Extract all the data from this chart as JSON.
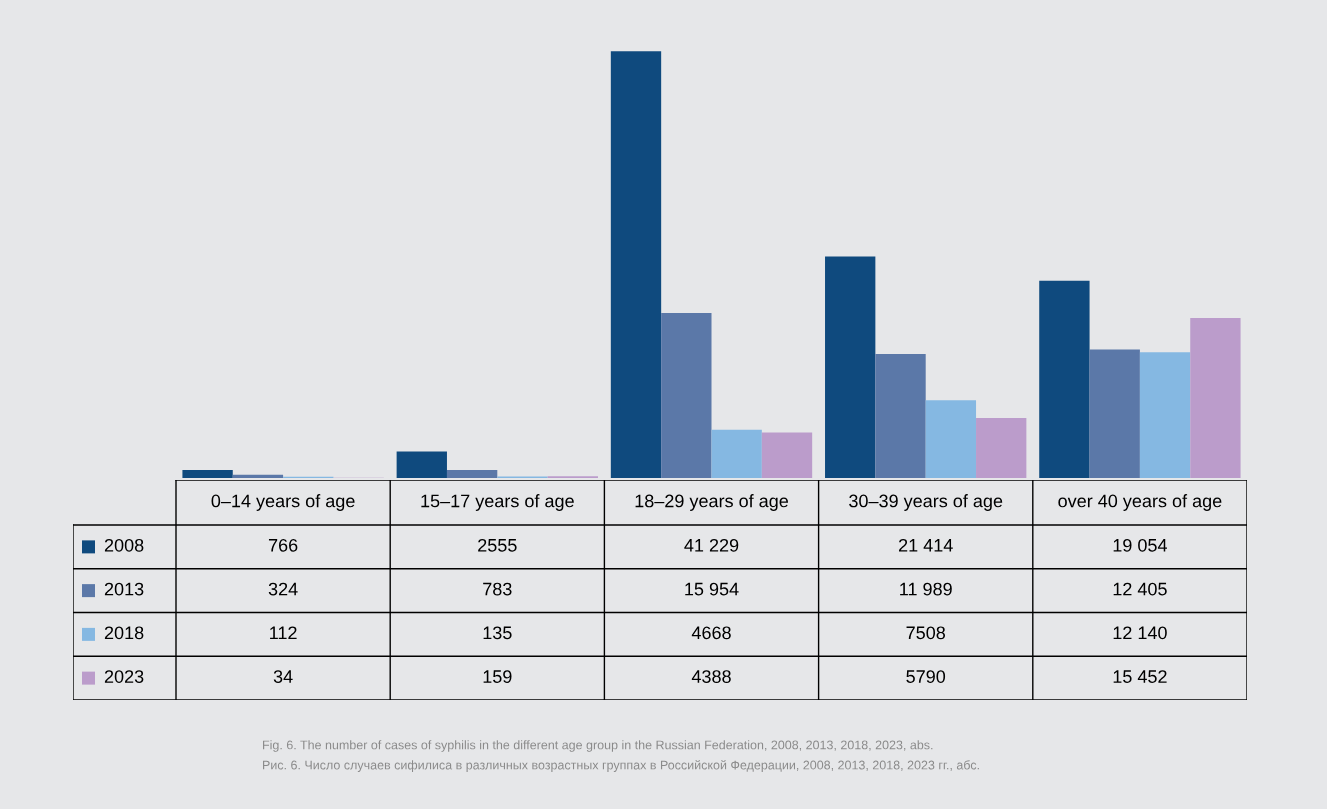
{
  "chart_data": {
    "type": "bar",
    "categories": [
      "0–14 years of age",
      "15–17 years of age",
      "18–29 years of age",
      "30–39 years of age",
      "over 40 years of age"
    ],
    "series": [
      {
        "name": "2008",
        "color": "#0f4a7e",
        "values": [
          766,
          2555,
          41229,
          21414,
          19054
        ],
        "value_labels": [
          "766",
          "2555",
          "41 229",
          "21 414",
          "19 054"
        ]
      },
      {
        "name": "2013",
        "color": "#5b78a8",
        "values": [
          324,
          783,
          15954,
          11989,
          12405
        ],
        "value_labels": [
          "324",
          "783",
          "15 954",
          "11 989",
          "12 405"
        ]
      },
      {
        "name": "2018",
        "color": "#85b8e2",
        "values": [
          112,
          135,
          4668,
          7508,
          12140
        ],
        "value_labels": [
          "112",
          "135",
          "4668",
          "7508",
          "12 140"
        ]
      },
      {
        "name": "2023",
        "color": "#bb9ccb",
        "values": [
          34,
          159,
          4388,
          5790,
          15452
        ],
        "value_labels": [
          "34",
          "159",
          "4388",
          "5790",
          "15 452"
        ]
      }
    ],
    "legend": "bottom left",
    "annotations": [
      "Fig. 6. The number of cases of syphilis in the different age group in the Russian Federation, 2008, 2013, 2018, 2023, abs.",
      "Рис. 6. Число случаев сифилиса в различных возрастных группах в Российской Федерации, 2008, 2013, 2018, 2023 гг., абс."
    ]
  }
}
